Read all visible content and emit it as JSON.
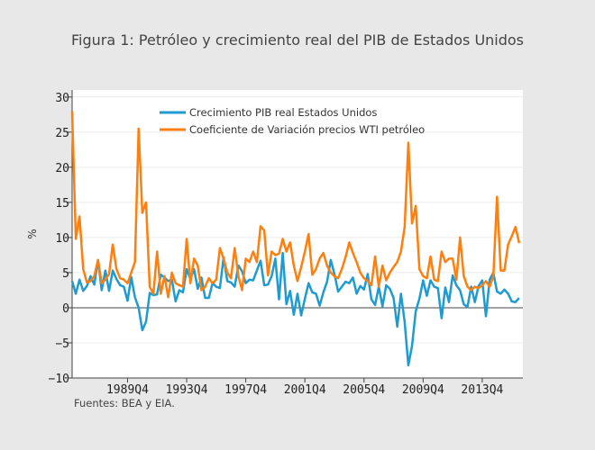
{
  "chart_data": {
    "type": "line",
    "title": "Figura 1: Petróleo y crecimiento real del PIB de Estados Unidos",
    "xlabel": "",
    "ylabel": "%",
    "source": "Fuentes: BEA y EIA.",
    "ylim": [
      -10,
      31
    ],
    "yticks": [
      -10,
      -5,
      0,
      5,
      10,
      15,
      20,
      25,
      30
    ],
    "ytick_labels": [
      "−10",
      "−5",
      "0",
      "5",
      "10",
      "15",
      "20",
      "25",
      "30"
    ],
    "xlim": [
      "1986Q1",
      "2016Q3"
    ],
    "xticks": [
      "1989Q4",
      "1993Q4",
      "1997Q4",
      "2001Q4",
      "2005Q4",
      "2009Q4",
      "2013Q4"
    ],
    "grid": true,
    "legend_position": "top-center",
    "series": [
      {
        "name": "Crecimiento PIB real Estados Unidos",
        "color": "#1f9bd1",
        "start": "1986Q1",
        "values": [
          3.8,
          2.0,
          4.0,
          2.4,
          3.1,
          4.5,
          3.3,
          6.8,
          2.5,
          5.3,
          2.4,
          5.3,
          4.1,
          3.2,
          3.0,
          1.0,
          4.4,
          1.5,
          0.0,
          -3.2,
          -2.0,
          2.1,
          1.8,
          1.9,
          4.7,
          4.3,
          3.8,
          4.0,
          0.9,
          2.5,
          2.2,
          5.5,
          4.1,
          5.5,
          2.7,
          4.3,
          1.4,
          1.4,
          3.5,
          3.0,
          2.8,
          7.2,
          3.8,
          3.6,
          3.0,
          6.0,
          5.2,
          3.5,
          4.0,
          3.9,
          5.3,
          6.7,
          3.2,
          3.3,
          4.5,
          7.0,
          1.2,
          7.8,
          0.5,
          2.4,
          -1.0,
          2.0,
          -1.1,
          1.3,
          3.5,
          2.2,
          2.0,
          0.3,
          2.2,
          3.7,
          6.8,
          4.8,
          2.3,
          3.0,
          3.7,
          3.5,
          4.3,
          2.0,
          3.1,
          2.6,
          4.8,
          1.2,
          0.4,
          3.0,
          0.2,
          3.2,
          2.7,
          1.4,
          -2.7,
          2.0,
          -2.0,
          -8.2,
          -5.4,
          -0.5,
          1.3,
          3.9,
          1.7,
          3.9,
          3.0,
          2.8,
          -1.5,
          2.9,
          0.8,
          4.6,
          3.2,
          2.5,
          0.5,
          0.1,
          3.0,
          0.8,
          3.1,
          3.9,
          -1.2,
          4.0,
          5.0,
          2.3,
          2.0,
          2.6,
          2.0,
          0.9,
          0.8,
          1.4
        ]
      },
      {
        "name": "Coeficiente de Variación precios WTI petróleo",
        "color": "#ff7f0e",
        "start": "1986Q1",
        "values": [
          28.0,
          9.8,
          13.0,
          5.5,
          3.6,
          3.8,
          4.5,
          6.8,
          3.5,
          4.0,
          4.8,
          9.0,
          5.5,
          4.2,
          4.0,
          3.5,
          5.0,
          6.5,
          25.5,
          13.5,
          15.0,
          3.0,
          2.0,
          8.0,
          2.0,
          4.5,
          1.5,
          5.0,
          3.5,
          3.2,
          3.0,
          9.8,
          3.5,
          7.0,
          6.0,
          2.5,
          3.0,
          4.2,
          3.5,
          4.0,
          8.5,
          7.0,
          5.0,
          4.2,
          8.5,
          4.5,
          2.5,
          7.0,
          6.5,
          8.0,
          6.5,
          11.6,
          11.0,
          4.6,
          8.0,
          7.5,
          7.7,
          9.8,
          8.0,
          9.3,
          6.0,
          3.8,
          5.8,
          8.0,
          10.5,
          4.7,
          5.5,
          7.0,
          7.8,
          6.0,
          5.0,
          4.5,
          4.2,
          5.5,
          7.2,
          9.3,
          7.8,
          6.5,
          5.0,
          4.2,
          3.8,
          3.2,
          7.3,
          3.0,
          6.0,
          3.9,
          5.0,
          5.8,
          6.5,
          8.0,
          11.5,
          23.5,
          12.0,
          14.5,
          5.5,
          4.5,
          4.2,
          7.3,
          4.0,
          3.8,
          8.0,
          6.5,
          7.0,
          7.0,
          4.0,
          10.0,
          4.5,
          3.0,
          2.5,
          3.0,
          2.8,
          3.2,
          3.8,
          3.0,
          4.5,
          15.8,
          5.3,
          5.3,
          9.0,
          10.2,
          11.5,
          9.2
        ]
      }
    ]
  }
}
